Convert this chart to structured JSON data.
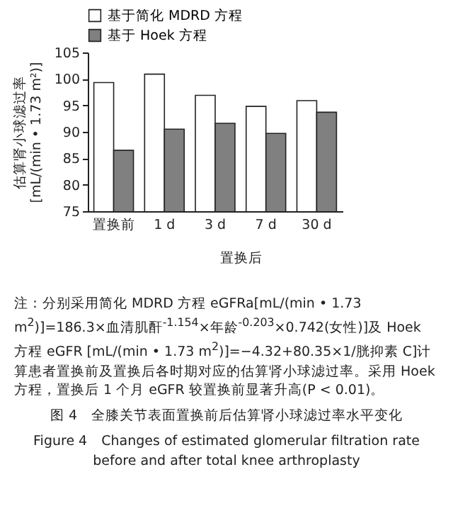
{
  "chart_data": {
    "type": "bar",
    "categories": [
      "置换前",
      "1 d",
      "3 d",
      "7 d",
      "30 d"
    ],
    "series": [
      {
        "name": "基于简化 MDRD 方程",
        "color": "#ffffff",
        "values": [
          99.3,
          100.9,
          96.9,
          94.8,
          95.9
        ]
      },
      {
        "name": "基于 Hoek 方程",
        "color": "#808080",
        "values": [
          86.5,
          90.5,
          91.6,
          89.7,
          93.7
        ]
      }
    ],
    "xlabel": "置换后",
    "ylabel": "估算肾小球滤过率\n[mL/(min • 1.73 m²)]",
    "ylim": [
      75,
      105
    ],
    "yticks": [
      75,
      80,
      85,
      90,
      95,
      100,
      105
    ],
    "legend": "top",
    "grid": false,
    "annotations": [
      "注：分别采用简化 MDRD 方程 eGFRa[mL/(min • 1.73 m$^{2}$)]=186.3×血清肌酐$^{-1.154}$×年龄$^{-0.203}$×0.742(女性)]及 Hoek 方程 eGFR [mL/(min • 1.73 m$^{2}$)]=−4.32+80.35×1/胱抑素 C]计算患者置换前及置换后各时期对应的估算肾小球滤过率。采用 Hoek 方程，置换后 1 个月 eGFR 较置换前显著升高(P < 0.01)。",
      "图 4　全膝关节表面置换前后估算肾小球滤过率水平变化",
      "Figure 4　Changes of estimated glomerular filtration rate before and after total knee arthroplasty"
    ]
  }
}
